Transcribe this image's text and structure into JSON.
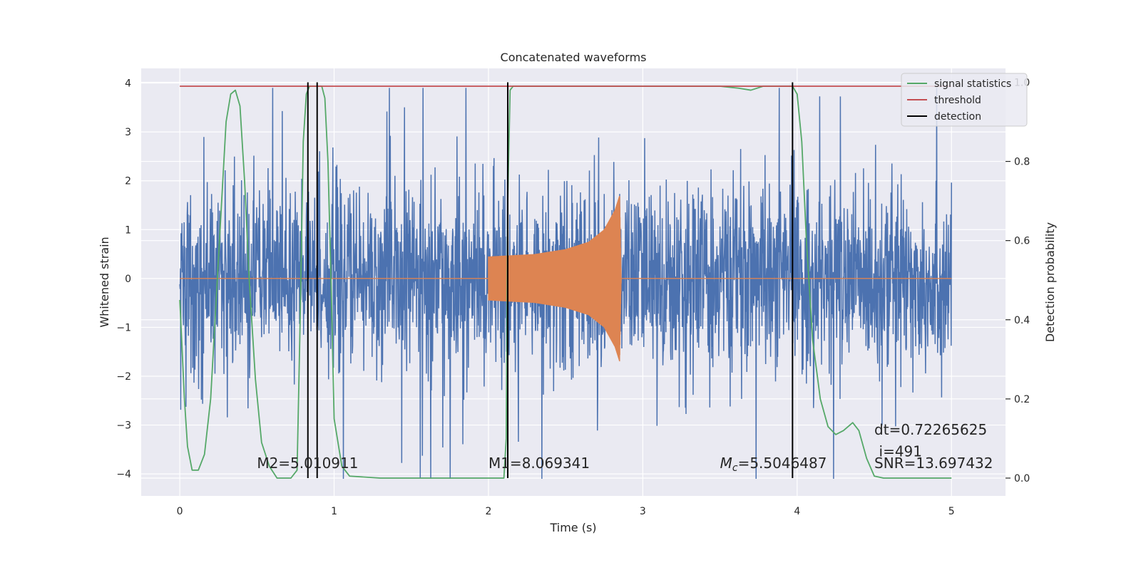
{
  "chart_data": {
    "type": "line",
    "title": "Concatenated waveforms",
    "xlabel": "Time (s)",
    "ylabel": "Whitened strain",
    "ylabel_right": "Detection probability",
    "xlim": [
      -0.25,
      5.35
    ],
    "ylim": [
      -4.45,
      4.3
    ],
    "ylim_right": [
      -0.045,
      1.035
    ],
    "x_ticks": [
      0,
      1,
      2,
      3,
      4,
      5
    ],
    "x_tick_labels": [
      "0",
      "1",
      "2",
      "3",
      "4",
      "5"
    ],
    "y_ticks": [
      4,
      3,
      2,
      1,
      0,
      -1,
      -2,
      -3,
      -4
    ],
    "y_tick_labels": [
      "4",
      "3",
      "2",
      "1",
      "0",
      "−1",
      "−2",
      "−3",
      "−4"
    ],
    "y_right_ticks": [
      1.0,
      0.8,
      0.6,
      0.4,
      0.2,
      0.0
    ],
    "y_right_tick_labels": [
      "1.0",
      "0.8",
      "0.6",
      "0.4",
      "0.2",
      "0.0"
    ],
    "grid": true,
    "legend_position": "top-right",
    "colors": {
      "background": "#eaeaf2",
      "grid": "#ffffff",
      "strain": "#4c72b0",
      "template": "#dd8452",
      "signal_statistics": "#55a868",
      "threshold": "#c44e52",
      "detection": "#000000"
    },
    "legend": [
      {
        "label": "signal statistics",
        "color_key": "signal_statistics"
      },
      {
        "label": "threshold",
        "color_key": "threshold"
      },
      {
        "label": "detection",
        "color_key": "detection"
      }
    ],
    "series": [
      {
        "name": "signal statistics",
        "axis": "right",
        "x": [
          0.0,
          0.03,
          0.05,
          0.08,
          0.12,
          0.16,
          0.2,
          0.25,
          0.3,
          0.33,
          0.36,
          0.39,
          0.42,
          0.45,
          0.49,
          0.53,
          0.58,
          0.63,
          0.68,
          0.72,
          0.76,
          0.78,
          0.8,
          0.82,
          0.84,
          0.87,
          0.9,
          0.92,
          0.94,
          0.96,
          0.98,
          1.0,
          1.05,
          1.1,
          1.3,
          1.6,
          2.0,
          2.1,
          2.115,
          2.125,
          2.14,
          2.16,
          2.18,
          2.2,
          2.5,
          3.0,
          3.5,
          3.62,
          3.7,
          3.78,
          3.9,
          3.97,
          4.0,
          4.03,
          4.06,
          4.1,
          4.15,
          4.2,
          4.25,
          4.3,
          4.36,
          4.4,
          4.45,
          4.5,
          4.56,
          4.62,
          4.7,
          4.8,
          4.9,
          5.0
        ],
        "y": [
          0.45,
          0.2,
          0.08,
          0.02,
          0.02,
          0.06,
          0.2,
          0.55,
          0.9,
          0.97,
          0.98,
          0.94,
          0.75,
          0.5,
          0.25,
          0.09,
          0.03,
          0.0,
          0.0,
          0.0,
          0.02,
          0.4,
          0.85,
          0.97,
          0.99,
          0.99,
          0.99,
          0.99,
          0.96,
          0.8,
          0.5,
          0.15,
          0.03,
          0.005,
          0.0,
          0.0,
          0.0,
          0.0,
          0.1,
          0.7,
          0.98,
          0.99,
          0.99,
          0.99,
          0.99,
          0.99,
          0.99,
          0.985,
          0.98,
          0.99,
          0.99,
          0.99,
          0.97,
          0.85,
          0.6,
          0.35,
          0.2,
          0.13,
          0.11,
          0.12,
          0.14,
          0.12,
          0.05,
          0.005,
          0.0,
          0.0,
          0.0,
          0.0,
          0.0,
          0.0
        ]
      },
      {
        "name": "threshold",
        "axis": "right",
        "x": [
          0,
          5
        ],
        "y": [
          0.99,
          0.99
        ]
      },
      {
        "name": "detection",
        "axis": "right",
        "vertical_lines_x": [
          0.83,
          0.89,
          2.125,
          3.97
        ]
      },
      {
        "axis": "left",
        "description_kind": "noise",
        "x_range": [
          0,
          5
        ],
        "approx_std": 0.9,
        "y_extent": [
          -4.1,
          3.9
        ]
      },
      {
        "axis": "left",
        "description_kind": "chirp",
        "x_range": [
          2.0,
          2.86
        ],
        "envelope": [
          [
            2.0,
            0.45
          ],
          [
            2.3,
            0.5
          ],
          [
            2.5,
            0.6
          ],
          [
            2.65,
            0.75
          ],
          [
            2.75,
            1.0
          ],
          [
            2.82,
            1.4
          ],
          [
            2.85,
            1.7
          ],
          [
            2.86,
            0.0
          ]
        ]
      }
    ],
    "annotations": [
      {
        "text": "M2=5.010911",
        "x": 0.5,
        "y_right": 0.025
      },
      {
        "text": "M1=8.069341",
        "x": 2.0,
        "y_right": 0.025
      },
      {
        "text_main": "M",
        "text_sub": "c",
        "text_rest": "=5.5046487",
        "x": 3.5,
        "y_right": 0.025
      },
      {
        "text": "dt=0.72265625",
        "x": 4.5,
        "y_right": 0.11
      },
      {
        "text": "i=491",
        "x": 4.53,
        "y_right": 0.055
      },
      {
        "text": "SNR=13.697432",
        "x": 4.5,
        "y_right": 0.025
      }
    ]
  }
}
